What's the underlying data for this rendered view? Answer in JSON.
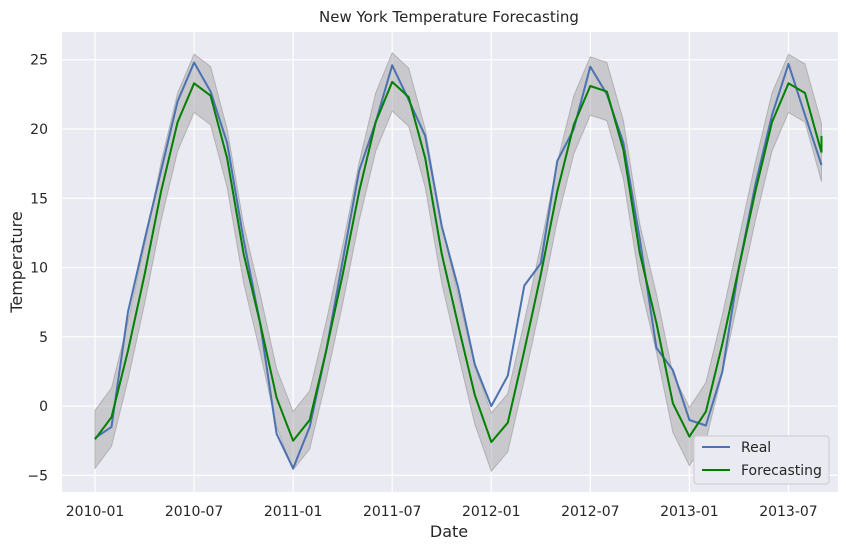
{
  "chart_data": {
    "type": "line",
    "title": "New York Temperature Forecasting",
    "xlabel": "Date",
    "ylabel": "Temperature",
    "x_axis": {
      "ticks": [
        "2010-01",
        "2010-07",
        "2011-01",
        "2011-07",
        "2012-01",
        "2012-07",
        "2013-01",
        "2013-07"
      ],
      "xlim": [
        "2009-11",
        "2013-10"
      ]
    },
    "y_axis": {
      "ticks": [
        -5,
        0,
        5,
        10,
        15,
        20,
        25
      ],
      "ylim": [
        -6.2,
        27
      ]
    },
    "grid": true,
    "legend_position": "bottom-right",
    "x": [
      "2010-01",
      "2010-02",
      "2010-03",
      "2010-04",
      "2010-05",
      "2010-06",
      "2010-07",
      "2010-08",
      "2010-09",
      "2010-10",
      "2010-11",
      "2010-12",
      "2011-01",
      "2011-02",
      "2011-03",
      "2011-04",
      "2011-05",
      "2011-06",
      "2011-07",
      "2011-08",
      "2011-09",
      "2011-10",
      "2011-11",
      "2011-12",
      "2012-01",
      "2012-02",
      "2012-03",
      "2012-04",
      "2012-05",
      "2012-06",
      "2012-07",
      "2012-08",
      "2012-09",
      "2012-10",
      "2012-11",
      "2012-12",
      "2013-01",
      "2013-02",
      "2013-03",
      "2013-04",
      "2013-05",
      "2013-06",
      "2013-07",
      "2013-08",
      "2013-09"
    ],
    "series": [
      {
        "name": "Real",
        "color": "#4c72b0",
        "values": [
          -2.3,
          -1.5,
          6.8,
          12.0,
          17.0,
          22.0,
          24.8,
          22.7,
          19.0,
          12.0,
          6.0,
          -2.0,
          -4.5,
          -1.5,
          4.0,
          10.5,
          17.0,
          20.5,
          24.6,
          22.1,
          19.5,
          13.0,
          8.5,
          3.0,
          0.0,
          2.2,
          8.7,
          10.3,
          17.7,
          20.0,
          24.5,
          22.5,
          19.0,
          12.0,
          4.2,
          2.6,
          -1.0,
          -1.4,
          2.5,
          10.0,
          16.0,
          21.0,
          24.7,
          21.0,
          17.4
        ]
      },
      {
        "name": "Forecasting",
        "color": "#008000",
        "values": [
          -2.4,
          -0.8,
          4.0,
          9.5,
          15.5,
          20.5,
          23.3,
          22.4,
          17.9,
          11.0,
          6.0,
          0.6,
          -2.5,
          -1.0,
          4.0,
          9.5,
          15.5,
          20.5,
          23.4,
          22.3,
          17.9,
          11.0,
          5.8,
          0.8,
          -2.6,
          -1.2,
          4.0,
          9.5,
          15.5,
          20.3,
          23.1,
          22.7,
          18.5,
          11.0,
          6.0,
          0.2,
          -2.2,
          -0.4,
          4.5,
          10.0,
          15.5,
          20.5,
          23.3,
          22.6,
          18.3
        ]
      }
    ],
    "forecast_end_marker": [
      19.5,
      18.3
    ],
    "confidence_band": {
      "color": "#a0a0a0",
      "offset": 2.1
    },
    "legend": [
      {
        "label": "Real",
        "color": "#4c72b0"
      },
      {
        "label": "Forecasting",
        "color": "#008000"
      }
    ]
  }
}
